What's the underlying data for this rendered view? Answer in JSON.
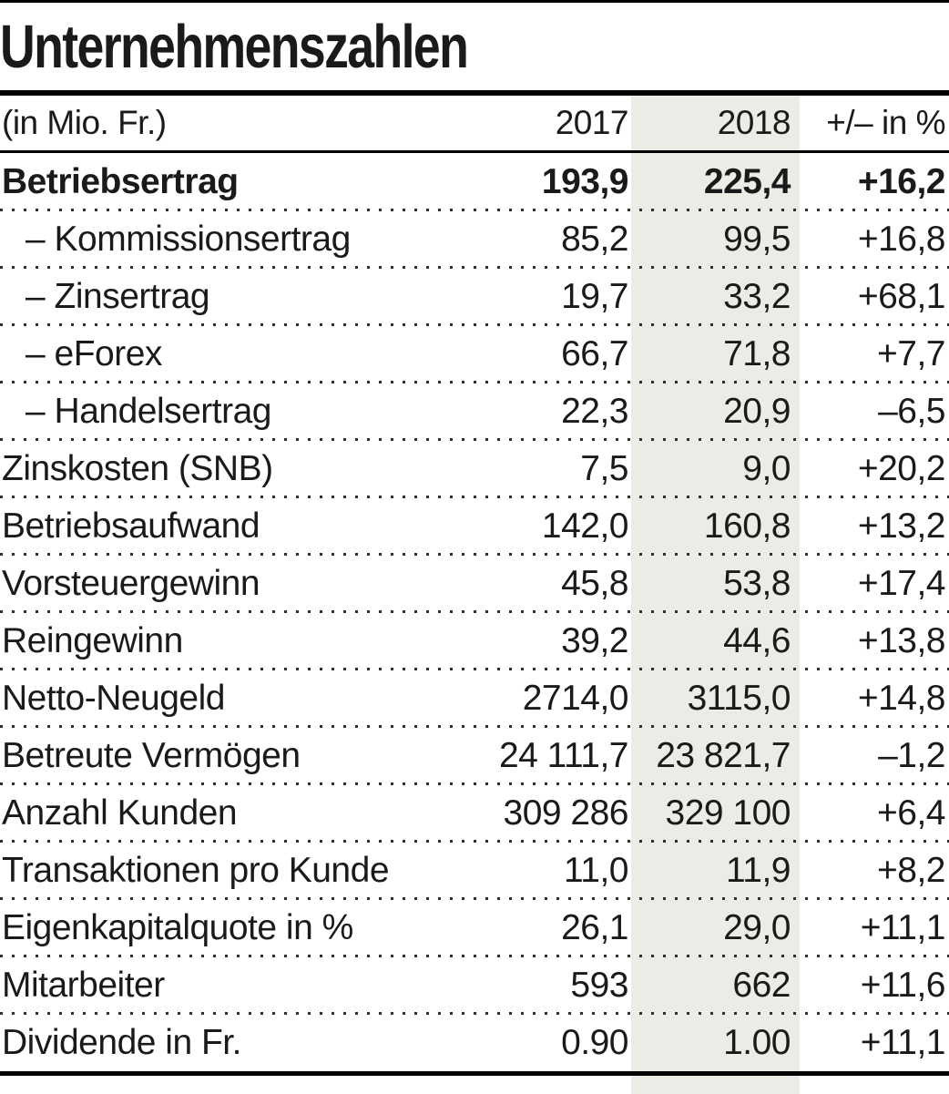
{
  "title": "Unternehmenszahlen",
  "table": {
    "unit_label": "(in Mio. Fr.)",
    "col_2017": "2017",
    "col_2018": "2018",
    "col_change": "+/– in %",
    "rows": [
      {
        "label": "Betriebsertrag",
        "y2017": "193,9",
        "y2018": "225,4",
        "change": "+16,2",
        "bold": true,
        "indent": false
      },
      {
        "label": "– Kommissionsertrag",
        "y2017": "85,2",
        "y2018": "99,5",
        "change": "+16,8",
        "bold": false,
        "indent": true
      },
      {
        "label": "– Zinsertrag",
        "y2017": "19,7",
        "y2018": "33,2",
        "change": "+68,1",
        "bold": false,
        "indent": true
      },
      {
        "label": "– eForex",
        "y2017": "66,7",
        "y2018": "71,8",
        "change": "+7,7",
        "bold": false,
        "indent": true
      },
      {
        "label": "– Handelsertrag",
        "y2017": "22,3",
        "y2018": "20,9",
        "change": "–6,5",
        "bold": false,
        "indent": true
      },
      {
        "label": "Zinskosten (SNB)",
        "y2017": "7,5",
        "y2018": "9,0",
        "change": "+20,2",
        "bold": false,
        "indent": false
      },
      {
        "label": "Betriebsaufwand",
        "y2017": "142,0",
        "y2018": "160,8",
        "change": "+13,2",
        "bold": false,
        "indent": false
      },
      {
        "label": "Vorsteuergewinn",
        "y2017": "45,8",
        "y2018": "53,8",
        "change": "+17,4",
        "bold": false,
        "indent": false
      },
      {
        "label": "Reingewinn",
        "y2017": "39,2",
        "y2018": "44,6",
        "change": "+13,8",
        "bold": false,
        "indent": false
      },
      {
        "label": "Netto-Neugeld",
        "y2017": "2714,0",
        "y2018": "3115,0",
        "change": "+14,8",
        "bold": false,
        "indent": false
      },
      {
        "label": "Betreute Vermögen",
        "y2017": "24 111,7",
        "y2018": "23 821,7",
        "change": "–1,2",
        "bold": false,
        "indent": false
      },
      {
        "label": "Anzahl Kunden",
        "y2017": "309 286",
        "y2018": "329 100",
        "change": "+6,4",
        "bold": false,
        "indent": false
      },
      {
        "label": "Transaktionen pro Kunde",
        "y2017": "11,0",
        "y2018": "11,9",
        "change": "+8,2",
        "bold": false,
        "indent": false
      },
      {
        "label": "Eigenkapitalquote in %",
        "y2017": "26,1",
        "y2018": "29,0",
        "change": "+11,1",
        "bold": false,
        "indent": false
      },
      {
        "label": "Mitarbeiter",
        "y2017": "593",
        "y2018": "662",
        "change": "+11,6",
        "bold": false,
        "indent": false
      },
      {
        "label": "Dividende in Fr.",
        "y2017": "0.90",
        "y2018": "1.00",
        "change": "+11,1",
        "bold": false,
        "indent": false
      }
    ]
  },
  "colors": {
    "band": "#ECEBE5",
    "rule": "#000000",
    "text": "#1A1A1A",
    "dots": "#2E2E2E"
  },
  "chart_data": {
    "type": "table",
    "title": "Unternehmenszahlen",
    "unit": "(in Mio. Fr.)",
    "columns": [
      "2017",
      "2018",
      "+/– in %"
    ],
    "highlighted_column": "2018",
    "rows": [
      {
        "label": "Betriebsertrag",
        "v2017": 193.9,
        "v2018": 225.4,
        "change_pct": 16.2
      },
      {
        "label": "Kommissionsertrag",
        "v2017": 85.2,
        "v2018": 99.5,
        "change_pct": 16.8
      },
      {
        "label": "Zinsertrag",
        "v2017": 19.7,
        "v2018": 33.2,
        "change_pct": 68.1
      },
      {
        "label": "eForex",
        "v2017": 66.7,
        "v2018": 71.8,
        "change_pct": 7.7
      },
      {
        "label": "Handelsertrag",
        "v2017": 22.3,
        "v2018": 20.9,
        "change_pct": -6.5
      },
      {
        "label": "Zinskosten (SNB)",
        "v2017": 7.5,
        "v2018": 9.0,
        "change_pct": 20.2
      },
      {
        "label": "Betriebsaufwand",
        "v2017": 142.0,
        "v2018": 160.8,
        "change_pct": 13.2
      },
      {
        "label": "Vorsteuergewinn",
        "v2017": 45.8,
        "v2018": 53.8,
        "change_pct": 17.4
      },
      {
        "label": "Reingewinn",
        "v2017": 39.2,
        "v2018": 44.6,
        "change_pct": 13.8
      },
      {
        "label": "Netto-Neugeld",
        "v2017": 2714.0,
        "v2018": 3115.0,
        "change_pct": 14.8
      },
      {
        "label": "Betreute Vermögen",
        "v2017": 24111.7,
        "v2018": 23821.7,
        "change_pct": -1.2
      },
      {
        "label": "Anzahl Kunden",
        "v2017": 309286,
        "v2018": 329100,
        "change_pct": 6.4
      },
      {
        "label": "Transaktionen pro Kunde",
        "v2017": 11.0,
        "v2018": 11.9,
        "change_pct": 8.2
      },
      {
        "label": "Eigenkapitalquote in %",
        "v2017": 26.1,
        "v2018": 29.0,
        "change_pct": 11.1
      },
      {
        "label": "Mitarbeiter",
        "v2017": 593,
        "v2018": 662,
        "change_pct": 11.6
      },
      {
        "label": "Dividende in Fr.",
        "v2017": 0.9,
        "v2018": 1.0,
        "change_pct": 11.1
      }
    ]
  }
}
